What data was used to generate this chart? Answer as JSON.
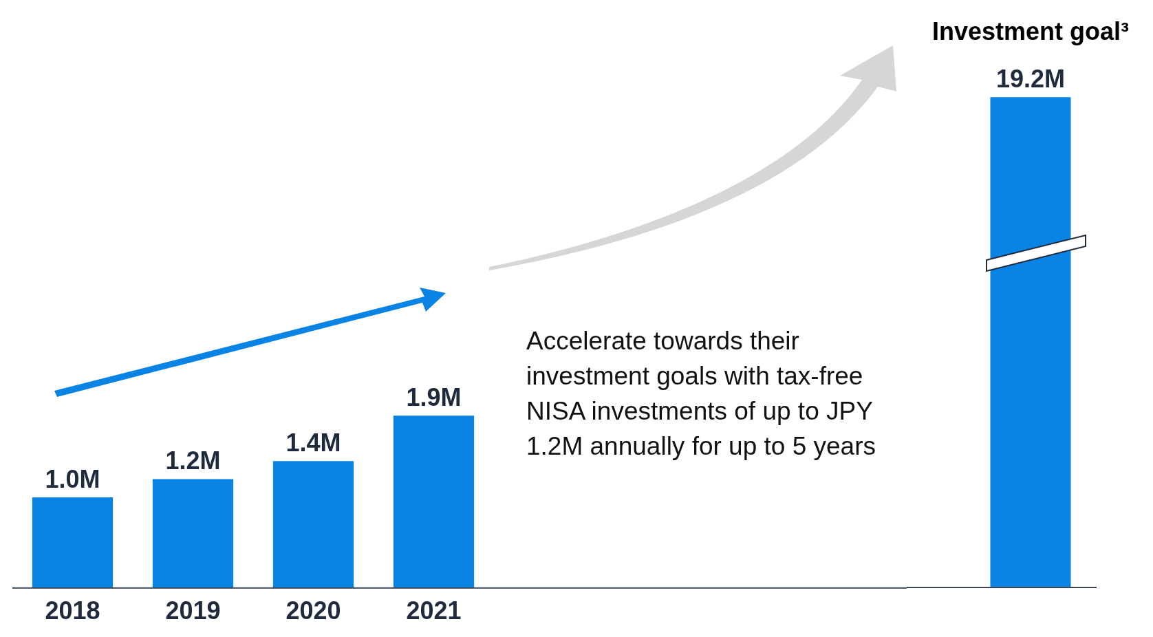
{
  "chart_data": [
    {
      "type": "bar",
      "categories": [
        "2018",
        "2019",
        "2020",
        "2021"
      ],
      "values": [
        1.0,
        1.2,
        1.4,
        1.9
      ],
      "value_labels": [
        "1.0M",
        "1.2M",
        "1.4M",
        "1.9M"
      ],
      "color": "#0a84e4",
      "tick_labels": "x",
      "grid": false,
      "legend": false,
      "annotations": [
        "Accelerate towards their investment goals with tax-free NISA investments of up to JPY 1.2M annually for up to 5 years"
      ]
    },
    {
      "type": "bar",
      "categories": [
        "Investment goal³"
      ],
      "values": [
        19.2
      ],
      "value_labels": [
        "19.2M"
      ],
      "color": "#0a84e4",
      "tick_labels": "x",
      "grid": false,
      "legend": false
    }
  ]
}
